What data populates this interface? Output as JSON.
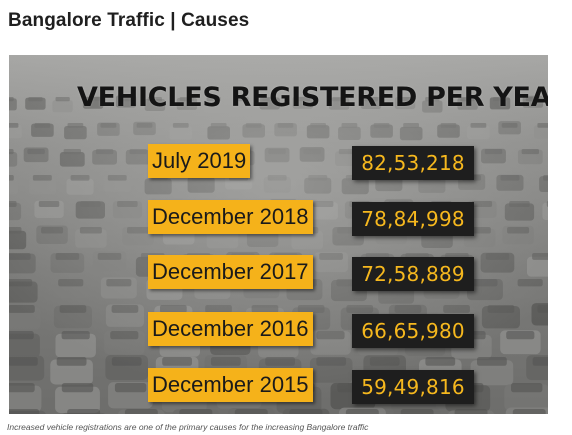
{
  "page": {
    "heading": "Bangalore Traffic | Causes"
  },
  "infographic": {
    "title": "VEHICLES REGISTERED PER YEAR",
    "rows": [
      {
        "date": "July 2019",
        "count": "82,53,218"
      },
      {
        "date": "December 2018",
        "count": "78,84,998"
      },
      {
        "date": "December 2017",
        "count": "72,58,889"
      },
      {
        "date": "December 2016",
        "count": "66,65,980"
      },
      {
        "date": "December 2015",
        "count": "59,49,816"
      }
    ],
    "colors": {
      "label_bg": "#f5b21a",
      "value_bg": "#1e1e1e",
      "value_text": "#f6b81e"
    }
  },
  "caption": "Increased vehicle registrations are one of the primary causes for the increasing Bangalore traffic"
}
